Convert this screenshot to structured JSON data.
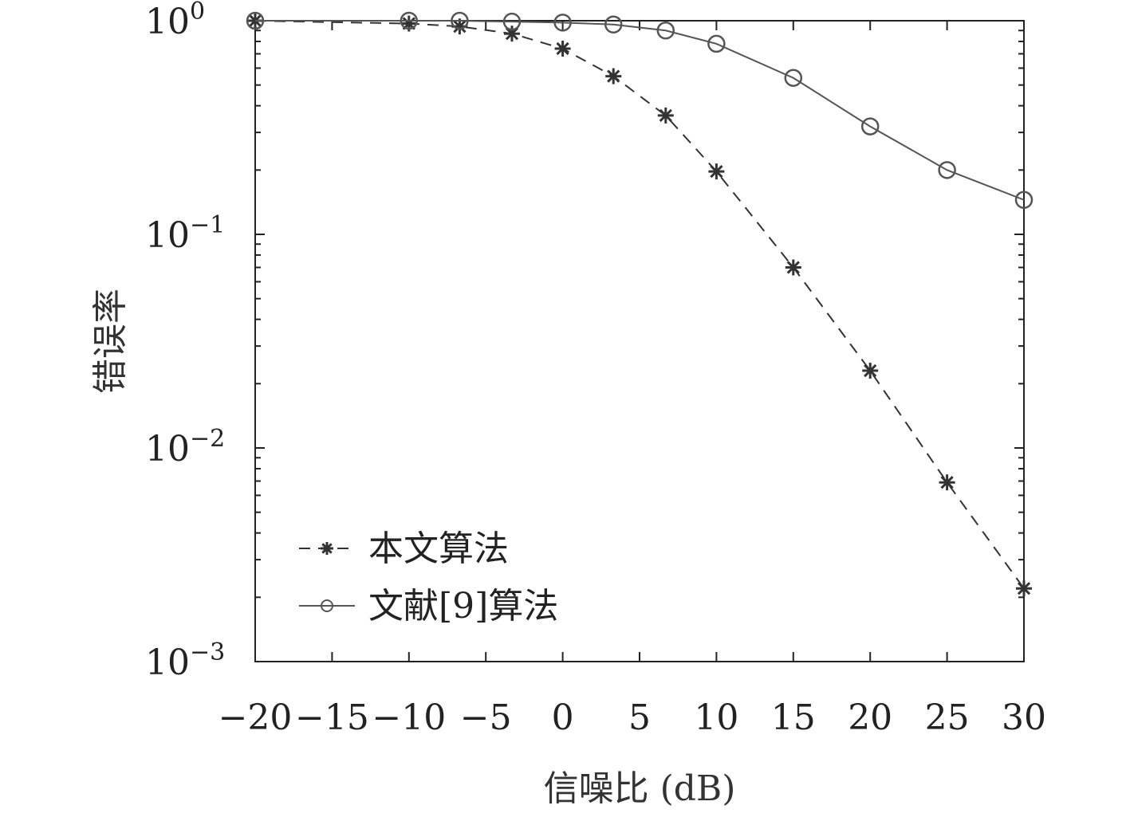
{
  "chart_data": {
    "type": "line",
    "title": "",
    "xlabel": "信噪比 (dB)",
    "ylabel": "错误率",
    "xlim": [
      -20,
      30
    ],
    "ylim": [
      0.001,
      1
    ],
    "yscale": "log",
    "xticks": [
      -20,
      -15,
      -10,
      -5,
      0,
      5,
      10,
      15,
      20,
      25,
      30
    ],
    "xtick_labels": [
      "−20",
      "−15",
      "−10",
      "−5",
      "0",
      "5",
      "10",
      "15",
      "20",
      "25",
      "30"
    ],
    "yticks": [
      1,
      0.1,
      0.01,
      0.001
    ],
    "ytick_labels": [
      {
        "base": "10",
        "exp": "0"
      },
      {
        "base": "10",
        "exp": "−1"
      },
      {
        "base": "10",
        "exp": "−2"
      },
      {
        "base": "10",
        "exp": "−3"
      }
    ],
    "grid": false,
    "legend_position": "bottom-left",
    "series": [
      {
        "name": "本文算法",
        "line_style": "dashed",
        "marker": "asterisk",
        "color": "#333333",
        "x": [
          -20,
          -10,
          -6.7,
          -3.3,
          0,
          3.3,
          6.7,
          10,
          15,
          20,
          25,
          30
        ],
        "y": [
          1.0,
          0.97,
          0.94,
          0.87,
          0.74,
          0.55,
          0.36,
          0.197,
          0.07,
          0.023,
          0.0069,
          0.0022
        ]
      },
      {
        "name": "文献[9]算法",
        "line_style": "solid",
        "marker": "circle",
        "color": "#555555",
        "x": [
          -20,
          -10,
          -6.7,
          -3.3,
          0,
          3.3,
          6.7,
          10,
          15,
          20,
          25,
          30
        ],
        "y": [
          1.0,
          1.0,
          1.0,
          0.99,
          0.98,
          0.96,
          0.9,
          0.78,
          0.54,
          0.32,
          0.2,
          0.145
        ]
      }
    ]
  }
}
